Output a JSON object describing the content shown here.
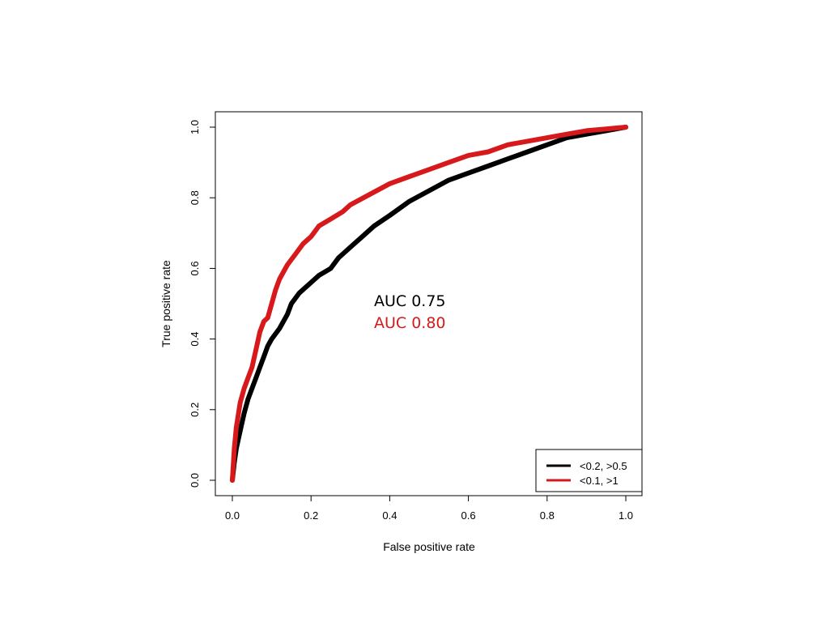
{
  "chart_data": {
    "type": "line",
    "title": "",
    "xlabel": "False positive rate",
    "ylabel": "True positive rate",
    "xlim": [
      0,
      1
    ],
    "ylim": [
      0,
      1
    ],
    "x_ticks": [
      "0.0",
      "0.2",
      "0.4",
      "0.6",
      "0.8",
      "1.0"
    ],
    "y_ticks": [
      "0.0",
      "0.2",
      "0.4",
      "0.6",
      "0.8",
      "1.0"
    ],
    "grid": false,
    "legend_position": "bottom-right",
    "series": [
      {
        "name": "<0.2, >0.5",
        "color": "#000000",
        "x": [
          0,
          0.005,
          0.01,
          0.02,
          0.03,
          0.04,
          0.05,
          0.06,
          0.07,
          0.08,
          0.09,
          0.1,
          0.12,
          0.14,
          0.15,
          0.17,
          0.2,
          0.22,
          0.25,
          0.27,
          0.3,
          0.33,
          0.36,
          0.4,
          0.45,
          0.5,
          0.55,
          0.6,
          0.65,
          0.7,
          0.75,
          0.8,
          0.85,
          0.9,
          0.95,
          1.0
        ],
        "y": [
          0,
          0.05,
          0.09,
          0.14,
          0.19,
          0.23,
          0.26,
          0.29,
          0.32,
          0.35,
          0.38,
          0.4,
          0.43,
          0.47,
          0.5,
          0.53,
          0.56,
          0.58,
          0.6,
          0.63,
          0.66,
          0.69,
          0.72,
          0.75,
          0.79,
          0.82,
          0.85,
          0.87,
          0.89,
          0.91,
          0.93,
          0.95,
          0.97,
          0.98,
          0.99,
          1.0
        ]
      },
      {
        "name": "<0.1, >1",
        "color": "#d7191c",
        "x": [
          0,
          0.005,
          0.01,
          0.02,
          0.03,
          0.04,
          0.05,
          0.06,
          0.07,
          0.08,
          0.09,
          0.1,
          0.11,
          0.12,
          0.14,
          0.16,
          0.18,
          0.2,
          0.22,
          0.25,
          0.28,
          0.3,
          0.35,
          0.4,
          0.45,
          0.5,
          0.55,
          0.6,
          0.65,
          0.7,
          0.75,
          0.8,
          0.85,
          0.9,
          0.95,
          1.0
        ],
        "y": [
          0,
          0.09,
          0.15,
          0.22,
          0.26,
          0.29,
          0.32,
          0.37,
          0.42,
          0.45,
          0.46,
          0.5,
          0.54,
          0.57,
          0.61,
          0.64,
          0.67,
          0.69,
          0.72,
          0.74,
          0.76,
          0.78,
          0.81,
          0.84,
          0.86,
          0.88,
          0.9,
          0.92,
          0.93,
          0.95,
          0.96,
          0.97,
          0.98,
          0.99,
          0.995,
          1.0
        ]
      }
    ],
    "annotations": [
      {
        "text": "AUC 0.75",
        "color": "#000000"
      },
      {
        "text": "AUC 0.80",
        "color": "#d7191c"
      }
    ]
  }
}
